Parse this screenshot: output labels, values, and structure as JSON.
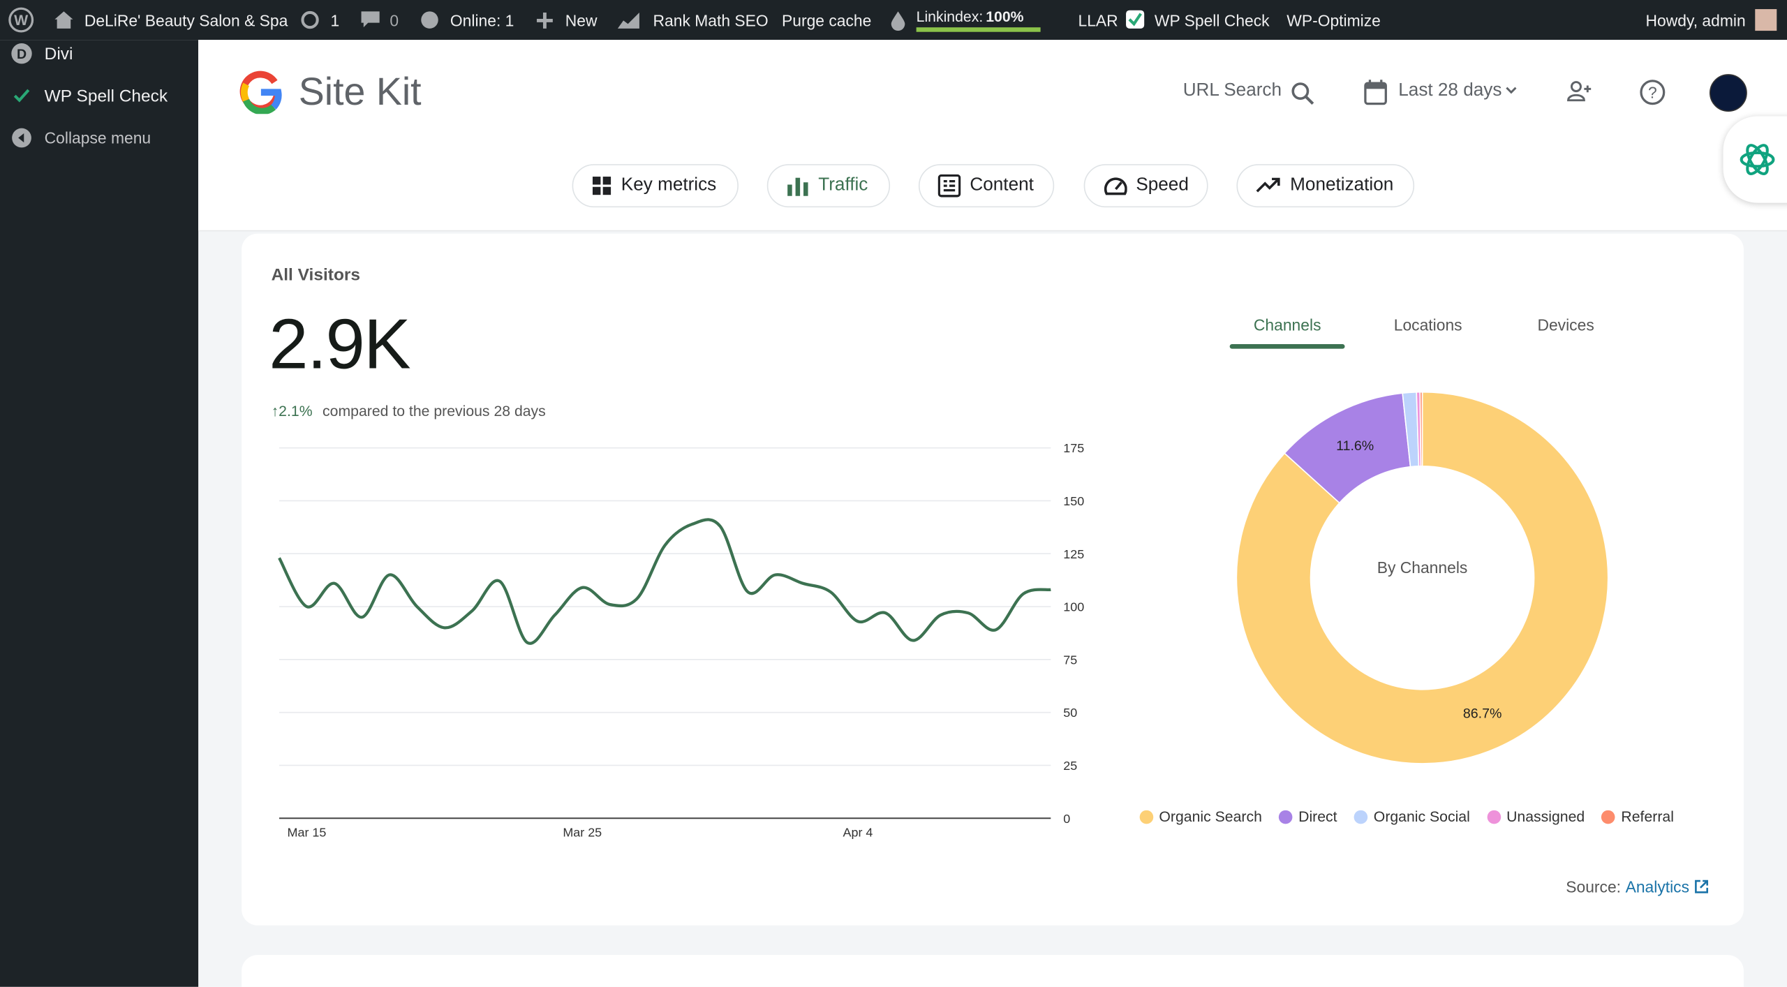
{
  "admin_bar": {
    "site": "DeLiRe' Beauty Salon & Spa",
    "updates": "1",
    "comments": "0",
    "online": "Online: 1",
    "new": "New",
    "rank_math": "Rank Math SEO",
    "purge": "Purge cache",
    "linkindex_label": "Linkindex:",
    "linkindex_value": "100%",
    "llar": "LLAR",
    "spell": "WP Spell Check",
    "optimize": "WP-Optimize",
    "howdy": "Howdy, admin"
  },
  "sidebar": {
    "items": [
      "Divi",
      "WP Spell Check",
      "Collapse menu"
    ]
  },
  "header": {
    "brand": "Site Kit",
    "url_search": "URL Search",
    "date_range": "Last 28 days"
  },
  "nav": {
    "tabs": [
      "Key metrics",
      "Traffic",
      "Content",
      "Speed",
      "Monetization"
    ]
  },
  "card": {
    "title": "All Visitors",
    "total": "2.9K",
    "change": "2.1%",
    "change_text": "compared to the previous 28 days",
    "dimension_tabs": [
      "Channels",
      "Locations",
      "Devices"
    ],
    "source_label": "Source:",
    "source_link": "Analytics"
  },
  "chart_data": [
    {
      "type": "line",
      "categories": [
        null,
        "Mar 15",
        null,
        null,
        null,
        null,
        null,
        null,
        null,
        null,
        null,
        "Mar 25",
        null,
        null,
        null,
        null,
        null,
        null,
        null,
        null,
        null,
        "Apr 4",
        null,
        null,
        null,
        null,
        null,
        null,
        null
      ],
      "values": [
        123,
        100,
        111,
        95,
        115,
        100,
        90,
        98,
        112,
        83,
        96,
        109,
        101,
        104,
        129,
        139,
        138,
        107,
        115,
        111,
        107,
        93,
        97,
        84,
        96,
        97,
        89,
        106,
        108
      ],
      "color": "#3c7251",
      "ylim": [
        0,
        175
      ],
      "yticks": [
        0,
        25,
        50,
        75,
        100,
        125,
        150,
        175
      ],
      "grid": true
    },
    {
      "type": "pie",
      "center_label": "By Channels",
      "categories": [
        "Organic Search",
        "Direct",
        "Organic Social",
        "Unassigned",
        "Referral"
      ],
      "values": [
        86.7,
        11.6,
        1.2,
        0.3,
        0.2
      ],
      "value_labels": [
        "86.7%",
        "11.6%",
        null,
        null,
        null
      ],
      "colors": [
        "#fdd076",
        "#a882e6",
        "#bcd3fc",
        "#ee92da",
        "#fd8c6c"
      ]
    }
  ]
}
